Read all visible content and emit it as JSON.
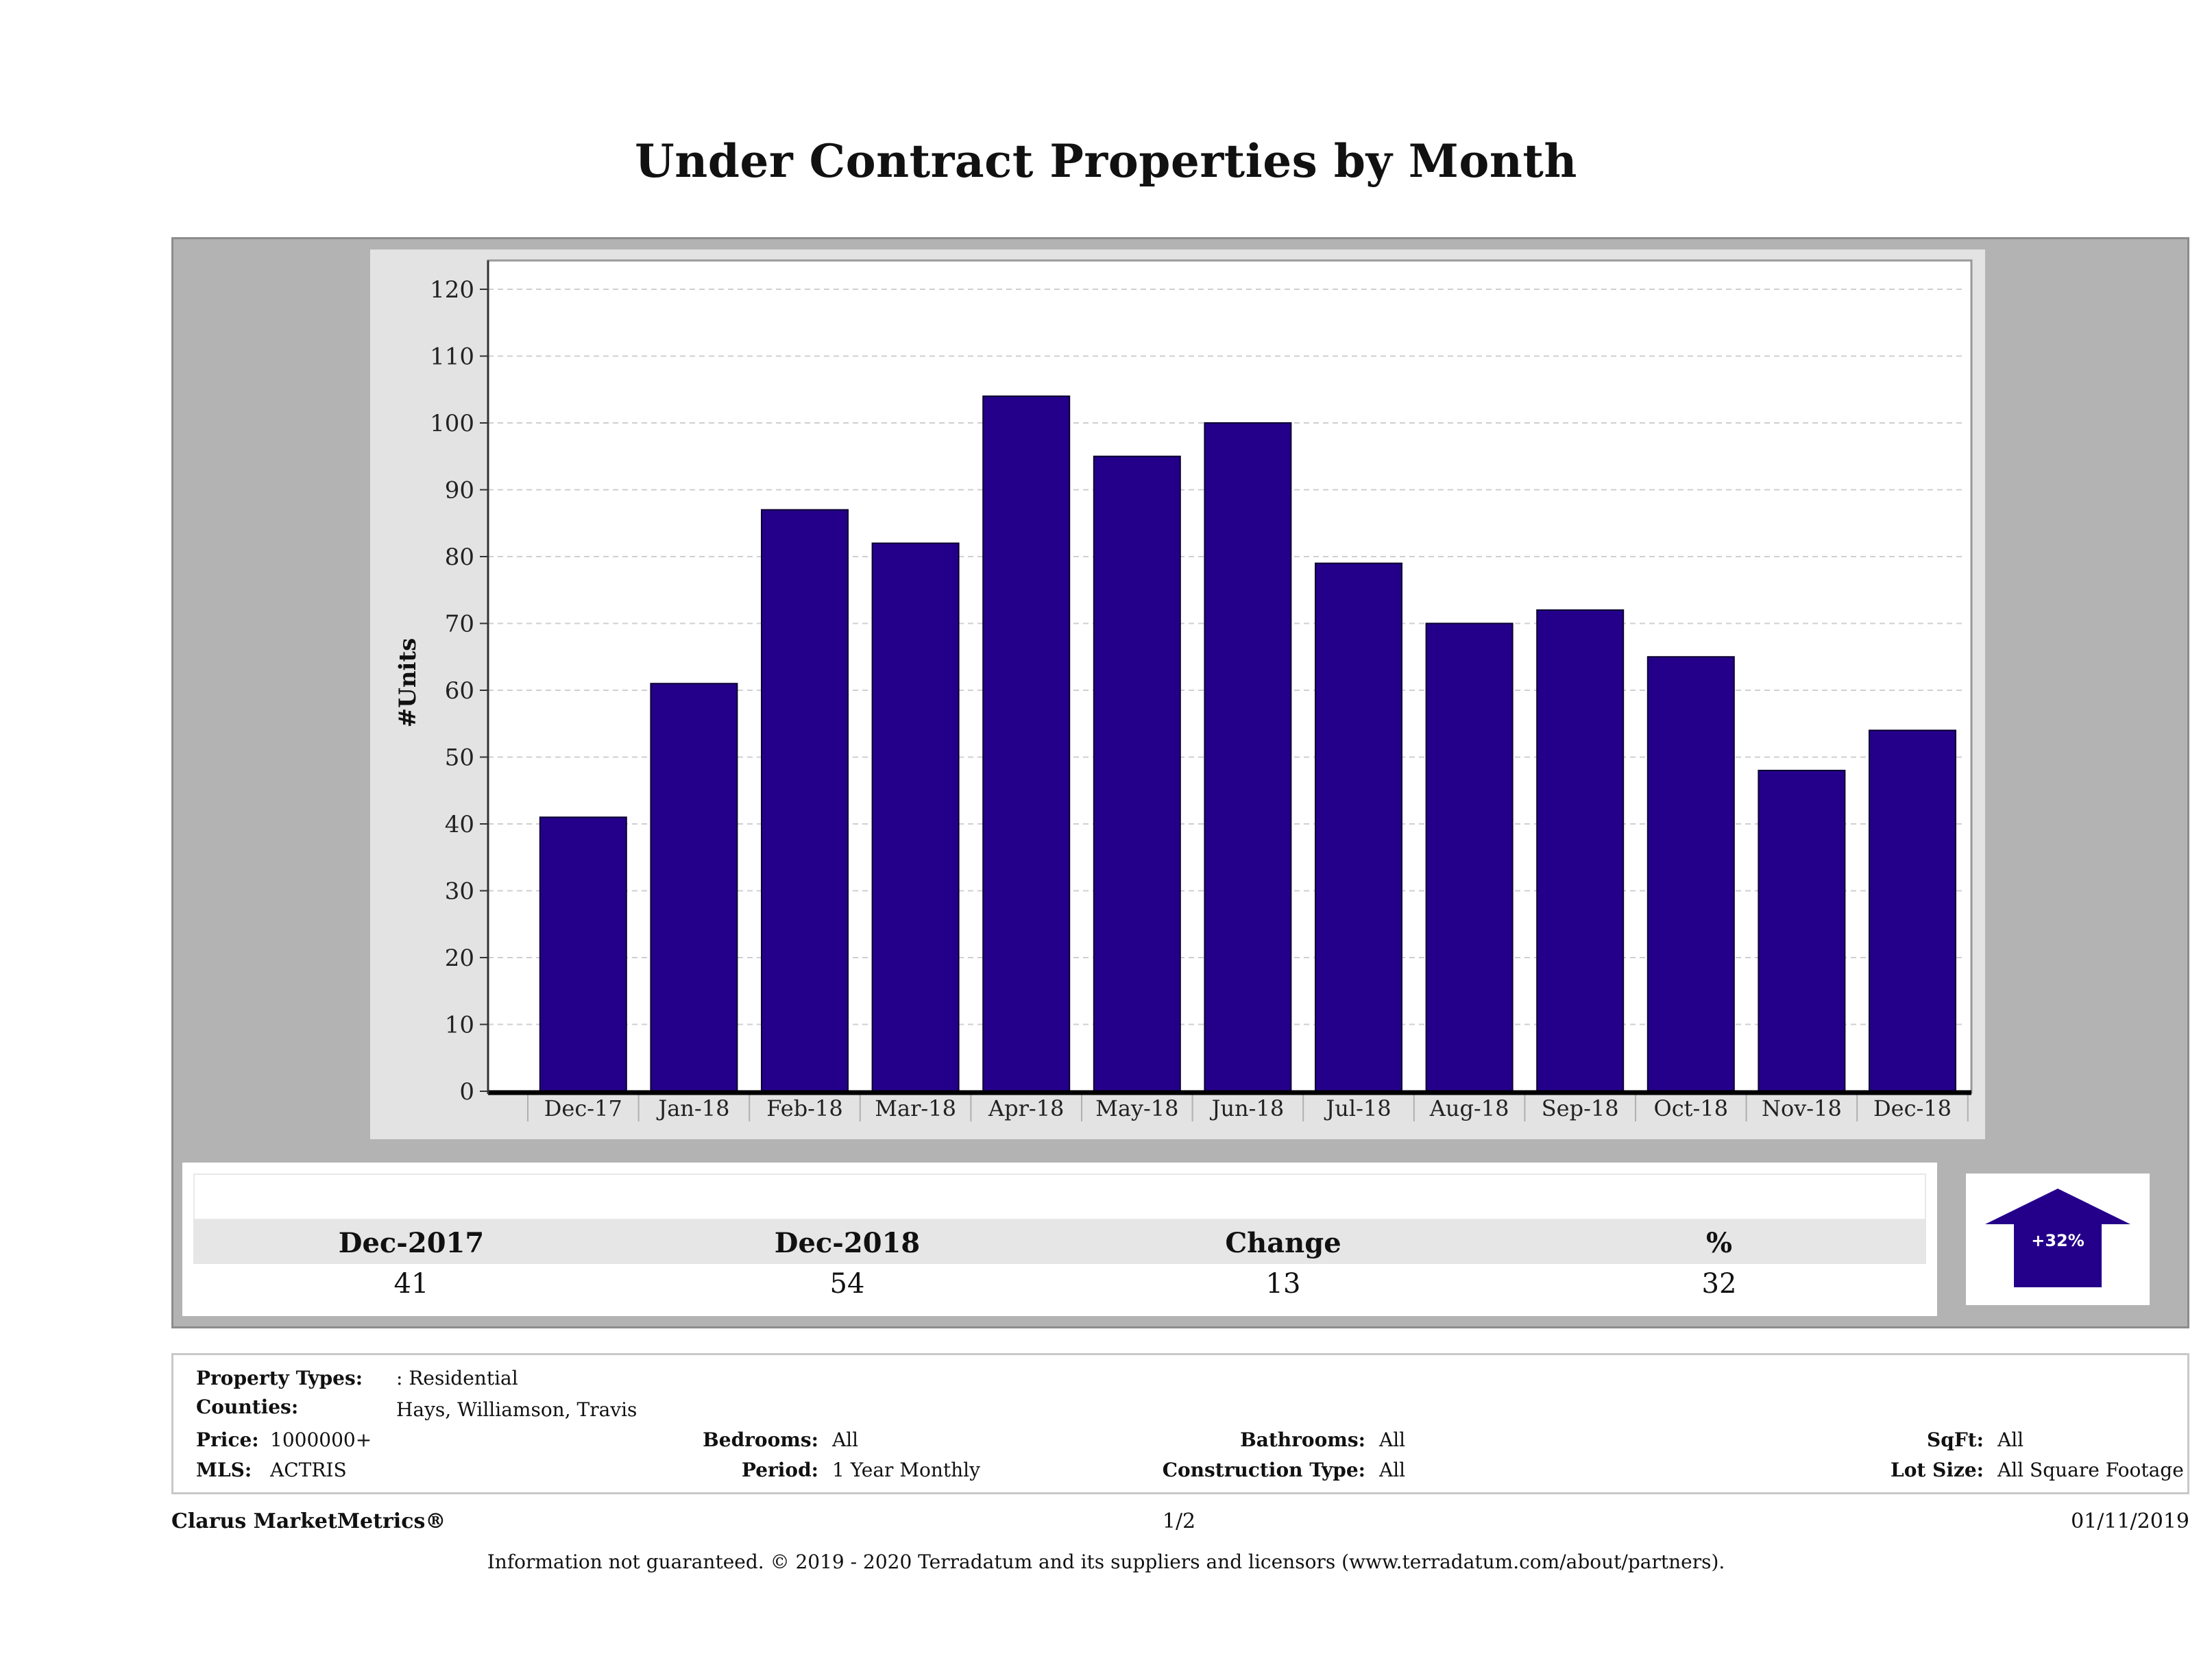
{
  "page": {
    "title": "Under Contract Properties by Month"
  },
  "chart_data": {
    "type": "bar",
    "title": "Under Contract Properties by Month",
    "xlabel": "",
    "ylabel": "#Units",
    "ylim": [
      0,
      120
    ],
    "yticks": [
      0,
      10,
      20,
      30,
      40,
      50,
      60,
      70,
      80,
      90,
      100,
      110,
      120
    ],
    "grid": true,
    "bar_color": "#24008a",
    "categories": [
      "Dec-17",
      "Jan-18",
      "Feb-18",
      "Mar-18",
      "Apr-18",
      "May-18",
      "Jun-18",
      "Jul-18",
      "Aug-18",
      "Sep-18",
      "Oct-18",
      "Nov-18",
      "Dec-18"
    ],
    "values": [
      41,
      61,
      87,
      82,
      104,
      95,
      100,
      79,
      70,
      72,
      65,
      48,
      54
    ]
  },
  "summary": {
    "headers": [
      "Dec-2017",
      "Dec-2018",
      "Change",
      "%"
    ],
    "values": [
      "41",
      "54",
      "13",
      "32"
    ],
    "badge": "+32%",
    "badge_icon": "up-arrow-icon",
    "badge_color": "#24008a"
  },
  "filters": {
    "property_types_label": "Property Types:",
    "property_types_value": ": Residential",
    "counties_label": "Counties:",
    "counties_value": "Hays, Williamson, Travis",
    "price_label": "Price:",
    "price_value": "1000000+",
    "mls_label": "MLS:",
    "mls_value": "ACTRIS",
    "bedrooms_label": "Bedrooms:",
    "bedrooms_value": "All",
    "period_label": "Period:",
    "period_value": "1 Year Monthly",
    "bathrooms_label": "Bathrooms:",
    "bathrooms_value": "All",
    "construction_label": "Construction Type:",
    "construction_value": "All",
    "sqft_label": "SqFt:",
    "sqft_value": "All",
    "lotsize_label": "Lot Size:",
    "lotsize_value": "All Square Footage"
  },
  "footer": {
    "brand": "Clarus MarketMetrics®",
    "page": "1/2",
    "date": "01/11/2019",
    "disclaimer": "Information not guaranteed. © 2019 - 2020 Terradatum and its suppliers and licensors (www.terradatum.com/about/partners)."
  }
}
